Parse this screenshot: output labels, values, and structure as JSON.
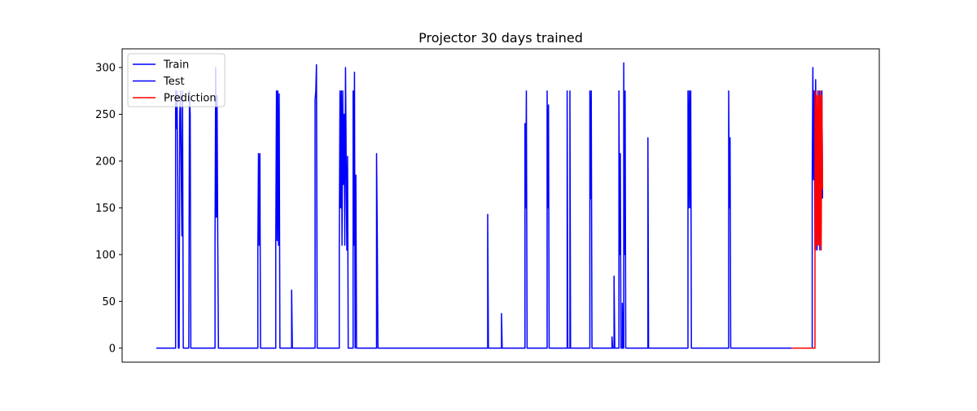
{
  "chart_data": {
    "type": "line",
    "title": "Projector 30 days trained",
    "xlabel": "",
    "ylabel": "",
    "x_axis": {
      "ticks_shown": false,
      "range": [
        0,
        1000
      ]
    },
    "ylim": [
      -15,
      320
    ],
    "yticks": [
      0,
      50,
      100,
      150,
      200,
      250,
      300
    ],
    "legend": {
      "location": "upper left",
      "entries": [
        {
          "name": "Train",
          "color": "#0000ff"
        },
        {
          "name": "Test",
          "color": "#0000ff"
        },
        {
          "name": "Prediction",
          "color": "#ff0000"
        }
      ]
    },
    "series": [
      {
        "name": "Train",
        "color": "#0000ff",
        "points": [
          [
            0,
            0
          ],
          [
            28,
            0
          ],
          [
            28,
            275
          ],
          [
            29,
            235
          ],
          [
            30,
            275
          ],
          [
            31,
            180
          ],
          [
            32,
            0
          ],
          [
            33,
            0
          ],
          [
            34,
            250
          ],
          [
            35,
            275
          ],
          [
            36,
            200
          ],
          [
            37,
            120
          ],
          [
            38,
            275
          ],
          [
            39,
            0
          ],
          [
            47,
            0
          ],
          [
            48,
            275
          ],
          [
            49,
            250
          ],
          [
            50,
            0
          ],
          [
            85,
            0
          ],
          [
            85,
            110
          ],
          [
            86,
            300
          ],
          [
            87,
            140
          ],
          [
            88,
            270
          ],
          [
            89,
            110
          ],
          [
            90,
            0
          ],
          [
            147,
            0
          ],
          [
            147,
            105
          ],
          [
            148,
            208
          ],
          [
            149,
            110
          ],
          [
            150,
            208
          ],
          [
            151,
            0
          ],
          [
            173,
            0
          ],
          [
            173,
            110
          ],
          [
            174,
            275
          ],
          [
            175,
            115
          ],
          [
            176,
            275
          ],
          [
            177,
            110
          ],
          [
            178,
            272
          ],
          [
            179,
            0
          ],
          [
            196,
            0
          ],
          [
            196,
            62
          ],
          [
            197,
            0
          ],
          [
            230,
            0
          ],
          [
            230,
            265
          ],
          [
            231,
            275
          ],
          [
            232,
            303
          ],
          [
            233,
            0
          ],
          [
            265,
            0
          ],
          [
            265,
            105
          ],
          [
            266,
            275
          ],
          [
            267,
            150
          ],
          [
            268,
            275
          ],
          [
            269,
            110
          ],
          [
            270,
            275
          ],
          [
            271,
            175
          ],
          [
            272,
            250
          ],
          [
            273,
            110
          ],
          [
            274,
            300
          ],
          [
            275,
            200
          ],
          [
            276,
            105
          ],
          [
            277,
            205
          ],
          [
            278,
            0
          ],
          [
            279,
            0
          ],
          [
            285,
            0
          ],
          [
            285,
            275
          ],
          [
            286,
            110
          ],
          [
            287,
            295
          ],
          [
            288,
            0
          ],
          [
            289,
            185
          ],
          [
            290,
            0
          ],
          [
            319,
            0
          ],
          [
            319,
            208
          ],
          [
            320,
            120
          ],
          [
            321,
            0
          ],
          [
            480,
            0
          ],
          [
            480,
            143
          ],
          [
            481,
            0
          ],
          [
            500,
            0
          ],
          [
            500,
            37
          ],
          [
            501,
            0
          ],
          [
            534,
            0
          ],
          [
            534,
            240
          ],
          [
            535,
            150
          ],
          [
            536,
            275
          ],
          [
            537,
            0
          ],
          [
            566,
            0
          ],
          [
            566,
            275
          ],
          [
            567,
            150
          ],
          [
            568,
            260
          ],
          [
            569,
            0
          ],
          [
            595,
            0
          ],
          [
            595,
            275
          ],
          [
            596,
            0
          ],
          [
            599,
            0
          ],
          [
            599,
            275
          ],
          [
            600,
            0
          ],
          [
            628,
            0
          ],
          [
            628,
            275
          ],
          [
            629,
            160
          ],
          [
            630,
            275
          ],
          [
            631,
            0
          ],
          [
            660,
            0
          ],
          [
            660,
            12
          ],
          [
            661,
            0
          ],
          [
            663,
            0
          ],
          [
            663,
            77
          ],
          [
            664,
            0
          ],
          [
            670,
            0
          ],
          [
            670,
            275
          ],
          [
            671,
            100
          ],
          [
            672,
            208
          ],
          [
            673,
            0
          ],
          [
            675,
            0
          ],
          [
            675,
            48
          ],
          [
            676,
            0
          ],
          [
            677,
            0
          ],
          [
            677,
            305
          ],
          [
            678,
            100
          ],
          [
            679,
            275
          ],
          [
            680,
            0
          ],
          [
            712,
            0
          ],
          [
            712,
            225
          ],
          [
            713,
            0
          ],
          [
            770,
            0
          ],
          [
            770,
            275
          ],
          [
            771,
            150
          ],
          [
            772,
            275
          ],
          [
            773,
            150
          ],
          [
            774,
            275
          ],
          [
            775,
            0
          ],
          [
            829,
            0
          ],
          [
            829,
            275
          ],
          [
            830,
            150
          ],
          [
            831,
            225
          ],
          [
            832,
            0
          ],
          [
            920,
            0
          ]
        ]
      },
      {
        "name": "Test",
        "color": "#0000ff",
        "points": [
          [
            920,
            0
          ],
          [
            950,
            0
          ],
          [
            950,
            180
          ],
          [
            951,
            300
          ],
          [
            952,
            180
          ],
          [
            953,
            275
          ],
          [
            954,
            105
          ],
          [
            955,
            287
          ],
          [
            956,
            200
          ],
          [
            957,
            105
          ],
          [
            958,
            250
          ],
          [
            959,
            150
          ],
          [
            960,
            275
          ],
          [
            961,
            105
          ],
          [
            962,
            260
          ],
          [
            963,
            130
          ],
          [
            964,
            275
          ],
          [
            965,
            160
          ]
        ]
      },
      {
        "name": "Prediction",
        "color": "#ff0000",
        "points": [
          [
            920,
            0
          ],
          [
            954,
            0
          ],
          [
            954,
            275
          ],
          [
            955,
            105
          ],
          [
            956,
            270
          ],
          [
            957,
            110
          ],
          [
            958,
            275
          ],
          [
            959,
            110
          ],
          [
            960,
            270
          ],
          [
            961,
            110
          ],
          [
            962,
            275
          ],
          [
            963,
            105
          ],
          [
            964,
            270
          ],
          [
            965,
            170
          ]
        ]
      }
    ]
  }
}
